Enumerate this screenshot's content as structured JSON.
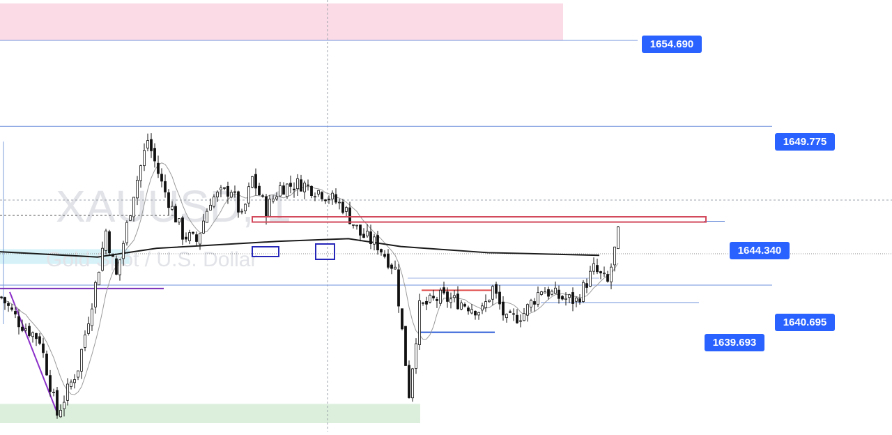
{
  "chart_data": {
    "type": "candlestick",
    "watermark": {
      "symbol": "XAUUSD, 1",
      "description": "Gold Spot / U.S. Dollar"
    },
    "ylim": [
      1632.5,
      1657.0
    ],
    "price_labels": [
      {
        "value": 1654.69,
        "text": "1654.690"
      },
      {
        "value": 1649.775,
        "text": "1649.775"
      },
      {
        "value": 1644.34,
        "text": "1644.340"
      },
      {
        "value": 1640.695,
        "text": "1640.695"
      },
      {
        "value": 1639.693,
        "text": "1639.693"
      }
    ],
    "zones": [
      {
        "name": "supply-zone",
        "y1": 1654.69,
        "y2": 1656.8,
        "color": "#fadbe6"
      },
      {
        "name": "blue-zone",
        "y1": 1641.9,
        "y2": 1642.75,
        "color": "#d6f2f8"
      },
      {
        "name": "demand-zone",
        "y1": 1632.8,
        "y2": 1633.9,
        "color": "#dcefdd"
      }
    ],
    "anchors": [
      {
        "t": 0,
        "p": 1640.0
      },
      {
        "t": 5,
        "p": 1638.6
      },
      {
        "t": 11,
        "p": 1637.6
      },
      {
        "t": 16,
        "p": 1633.3
      },
      {
        "t": 22,
        "p": 1636.0
      },
      {
        "t": 27,
        "p": 1640.7
      },
      {
        "t": 30,
        "p": 1643.8
      },
      {
        "t": 33,
        "p": 1641.2
      },
      {
        "t": 38,
        "p": 1646.0
      },
      {
        "t": 42,
        "p": 1649.0
      },
      {
        "t": 46,
        "p": 1646.5
      },
      {
        "t": 52,
        "p": 1643.6
      },
      {
        "t": 56,
        "p": 1643.2
      },
      {
        "t": 60,
        "p": 1645.6
      },
      {
        "t": 66,
        "p": 1646.2
      },
      {
        "t": 69,
        "p": 1644.5
      },
      {
        "t": 72,
        "p": 1646.8
      },
      {
        "t": 76,
        "p": 1645.0
      },
      {
        "t": 80,
        "p": 1646.3
      },
      {
        "t": 86,
        "p": 1646.5
      },
      {
        "t": 92,
        "p": 1646.0
      },
      {
        "t": 98,
        "p": 1645.2
      },
      {
        "t": 103,
        "p": 1643.6
      },
      {
        "t": 108,
        "p": 1643.0
      },
      {
        "t": 113,
        "p": 1641.6
      },
      {
        "t": 117,
        "p": 1634.5
      },
      {
        "t": 120,
        "p": 1639.4
      },
      {
        "t": 126,
        "p": 1640.0
      },
      {
        "t": 132,
        "p": 1639.7
      },
      {
        "t": 138,
        "p": 1639.2
      },
      {
        "t": 141,
        "p": 1640.5
      },
      {
        "t": 145,
        "p": 1638.6
      },
      {
        "t": 150,
        "p": 1639.1
      },
      {
        "t": 155,
        "p": 1640.5
      },
      {
        "t": 160,
        "p": 1640.0
      },
      {
        "t": 165,
        "p": 1639.8
      },
      {
        "t": 170,
        "p": 1641.6
      },
      {
        "t": 174,
        "p": 1640.8
      },
      {
        "t": 177,
        "p": 1643.6
      }
    ],
    "ema_long": [
      {
        "t": 0,
        "p": 1642.6
      },
      {
        "t": 28,
        "p": 1642.3
      },
      {
        "t": 45,
        "p": 1642.8
      },
      {
        "t": 80,
        "p": 1643.2
      },
      {
        "t": 100,
        "p": 1643.35
      },
      {
        "t": 115,
        "p": 1642.9
      },
      {
        "t": 140,
        "p": 1642.55
      },
      {
        "t": 172,
        "p": 1642.4
      }
    ],
    "levels": [
      {
        "name": "purple-support",
        "value": 1640.5,
        "t1": 0,
        "t2": 47,
        "color": "#7b2fb8"
      },
      {
        "name": "red-range-top",
        "value": 1640.4,
        "t1": 121,
        "t2": 141,
        "color": "#e04b4b"
      },
      {
        "name": "blue-range-bottom",
        "value": 1638.0,
        "t1": 120,
        "t2": 142,
        "color": "#2a5bd7"
      }
    ],
    "boxes": [
      {
        "name": "order-block-1",
        "t1": 72,
        "t2": 80,
        "y1": 1643.9,
        "y2": 1644.5
      },
      {
        "name": "order-block-2",
        "t1": 90,
        "t2": 96,
        "y1": 1643.7,
        "y2": 1644.6
      },
      {
        "name": "red-level-box",
        "t1": 80,
        "t2": 203,
        "y1": 1644.3,
        "y2": 1644.6
      }
    ],
    "trendline": [
      {
        "t": 2,
        "p": 1640.3
      },
      {
        "t": 16,
        "p": 1633.4
      }
    ],
    "grid": false,
    "legend": "none"
  }
}
